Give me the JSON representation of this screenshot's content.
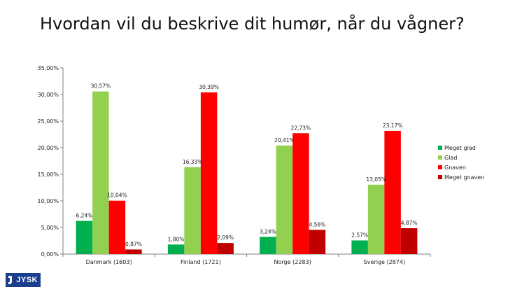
{
  "chart_data": {
    "type": "bar",
    "title": "Hvordan vil du beskrive dit humør, når du vågner?",
    "categories": [
      "Danmark (1603)",
      "Finland (1721)",
      "Norge (2283)",
      "Sverige (2874)"
    ],
    "series": [
      {
        "name": "Meget glad",
        "color": "#00b050",
        "values": [
          6.24,
          1.8,
          3.24,
          2.57
        ],
        "labels": [
          "6,24%",
          "1,80%",
          "3,24%",
          "2,57%"
        ]
      },
      {
        "name": "Glad",
        "color": "#92d050",
        "values": [
          30.57,
          16.33,
          20.41,
          13.05
        ],
        "labels": [
          "30,57%",
          "16,33%",
          "20,41%",
          "13,05%"
        ]
      },
      {
        "name": "Gnaven",
        "color": "#ff0000",
        "values": [
          10.04,
          30.39,
          22.73,
          23.17
        ],
        "labels": [
          "10,04%",
          "30,39%",
          "22,73%",
          "23,17%"
        ]
      },
      {
        "name": "Meget gnaven",
        "color": "#c00000",
        "values": [
          0.87,
          2.09,
          4.56,
          4.87
        ],
        "labels": [
          "0,87%",
          "2,09%",
          "4,56%",
          "4,87%"
        ]
      }
    ],
    "ylim": [
      0,
      35
    ],
    "yticks": [
      "0,00%",
      "5,00%",
      "10,00%",
      "15,00%",
      "20,00%",
      "25,00%",
      "30,00%",
      "35,00%"
    ],
    "legend_position": "right",
    "grid": false
  },
  "logo": {
    "text": "JYSK"
  }
}
